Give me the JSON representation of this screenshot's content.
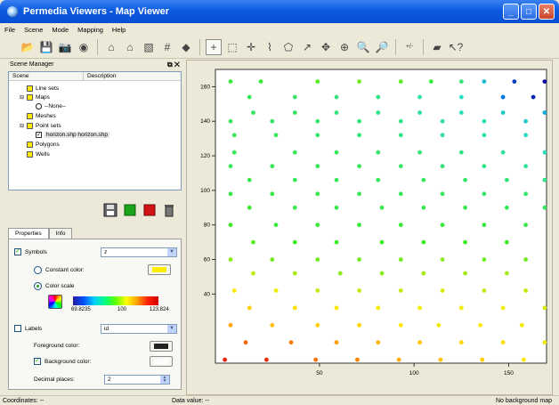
{
  "window": {
    "title": "Permedia Viewers - Map Viewer"
  },
  "menu": [
    "File",
    "Scene",
    "Mode",
    "Mapping",
    "Help"
  ],
  "toolbar": {
    "zoom_pm": "+/-"
  },
  "scene_manager": {
    "title": "Scene Manager",
    "columns": [
      "Scene",
      "Description"
    ],
    "items": [
      {
        "label": "Line sets"
      },
      {
        "label": "Maps"
      },
      {
        "label": "--None--"
      },
      {
        "label": "Meshes"
      },
      {
        "label": "Point sets"
      },
      {
        "label": "horizon.shp",
        "description": "horizon.shp"
      },
      {
        "label": "Polygons"
      },
      {
        "label": "Wells"
      }
    ]
  },
  "tabs": [
    "Properties",
    "Info"
  ],
  "properties": {
    "symbols_label": "Symbols",
    "symbols_field": "z",
    "constant_color_label": "Constant color:",
    "color_scale_label": "Color scale",
    "scale_min": "69.8235",
    "scale_mid": "100",
    "scale_max": "123.824",
    "labels_label": "Labels",
    "labels_field": "id",
    "foreground_label": "Foreground color:",
    "background_label": "Background color:",
    "decimal_label": "Decimal places:",
    "decimal_value": "2",
    "colors": {
      "constant": "#ffee00",
      "foreground": "#222222",
      "background": "#ffffff"
    }
  },
  "status": {
    "coordinates": "Coordinates: --",
    "data_value": "Data value: --",
    "background": "No background map"
  },
  "chart_data": {
    "type": "scatter",
    "title": "",
    "xlabel": "",
    "ylabel": "",
    "xlim": [
      -5,
      170
    ],
    "ylim": [
      0,
      170
    ],
    "xticks": [
      50,
      100,
      150
    ],
    "yticks": [
      40,
      60,
      80,
      100,
      120,
      140,
      160
    ],
    "color_scale": {
      "min": 69.8235,
      "max": 123.824
    },
    "point_rows": [
      {
        "y": 2,
        "x": [
          0,
          22,
          48,
          70,
          92,
          114,
          136,
          158
        ],
        "c": [
          0.02,
          0.05,
          0.18,
          0.22,
          0.3,
          0.36,
          0.38,
          0.44
        ]
      },
      {
        "y": 12,
        "x": [
          11,
          35,
          59,
          81,
          103,
          125,
          147,
          169
        ],
        "c": [
          0.16,
          0.2,
          0.26,
          0.32,
          0.36,
          0.4,
          0.42,
          0.46
        ]
      },
      {
        "y": 22,
        "x": [
          3,
          25,
          49,
          71,
          93,
          113,
          135,
          157
        ],
        "c": [
          0.28,
          0.34,
          0.38,
          0.4,
          0.44,
          0.46,
          0.44,
          0.46
        ]
      },
      {
        "y": 32,
        "x": [
          13,
          37,
          59,
          81,
          103,
          125,
          147,
          169
        ],
        "c": [
          0.38,
          0.42,
          0.44,
          0.46,
          0.46,
          0.46,
          0.46,
          0.48
        ]
      },
      {
        "y": 42,
        "x": [
          5,
          27,
          49,
          71,
          93,
          115,
          137,
          159
        ],
        "c": [
          0.44,
          0.46,
          0.5,
          0.5,
          0.5,
          0.48,
          0.5,
          0.5
        ]
      },
      {
        "y": 52,
        "x": [
          15,
          37,
          61,
          83,
          105,
          127,
          149
        ],
        "c": [
          0.5,
          0.52,
          0.54,
          0.54,
          0.52,
          0.52,
          0.52
        ]
      },
      {
        "y": 60,
        "x": [
          3,
          25,
          49,
          71,
          93,
          115,
          137,
          159
        ],
        "c": [
          0.54,
          0.56,
          0.56,
          0.56,
          0.56,
          0.54,
          0.56,
          0.56
        ]
      },
      {
        "y": 70,
        "x": [
          15,
          37,
          59,
          83,
          105,
          127,
          149
        ],
        "c": [
          0.58,
          0.6,
          0.6,
          0.6,
          0.6,
          0.6,
          0.6
        ]
      },
      {
        "y": 80,
        "x": [
          3,
          27,
          49,
          71,
          93,
          115,
          137,
          159
        ],
        "c": [
          0.6,
          0.62,
          0.62,
          0.62,
          0.62,
          0.62,
          0.64,
          0.64
        ]
      },
      {
        "y": 90,
        "x": [
          13,
          37,
          59,
          83,
          105,
          127,
          149,
          169
        ],
        "c": [
          0.62,
          0.64,
          0.64,
          0.64,
          0.64,
          0.64,
          0.66,
          0.66
        ]
      },
      {
        "y": 98,
        "x": [
          3,
          25,
          49,
          71,
          93,
          115,
          137,
          159
        ],
        "c": [
          0.64,
          0.64,
          0.64,
          0.66,
          0.66,
          0.66,
          0.68,
          0.68
        ]
      },
      {
        "y": 106,
        "x": [
          13,
          37,
          59,
          81,
          105,
          127,
          149,
          169
        ],
        "c": [
          0.64,
          0.66,
          0.66,
          0.66,
          0.66,
          0.68,
          0.7,
          0.72
        ]
      },
      {
        "y": 114,
        "x": [
          3,
          25,
          49,
          71,
          93,
          115,
          137,
          159
        ],
        "c": [
          0.66,
          0.66,
          0.66,
          0.66,
          0.68,
          0.7,
          0.72,
          0.74
        ]
      },
      {
        "y": 122,
        "x": [
          5,
          37,
          59,
          81,
          103,
          125,
          147,
          169
        ],
        "c": [
          0.66,
          0.66,
          0.66,
          0.68,
          0.7,
          0.72,
          0.74,
          0.78
        ]
      },
      {
        "y": 132,
        "x": [
          5,
          27,
          49,
          71,
          93,
          115,
          137,
          159
        ],
        "c": [
          0.66,
          0.66,
          0.68,
          0.7,
          0.72,
          0.74,
          0.76,
          0.8
        ]
      },
      {
        "y": 140,
        "x": [
          3,
          25,
          49,
          71,
          93,
          115,
          137,
          159
        ],
        "c": [
          0.66,
          0.68,
          0.68,
          0.7,
          0.72,
          0.76,
          0.78,
          0.82
        ]
      },
      {
        "y": 145,
        "x": [
          15,
          37,
          59,
          81,
          103,
          125,
          147,
          169
        ],
        "c": [
          0.68,
          0.68,
          0.7,
          0.72,
          0.74,
          0.78,
          0.82,
          0.86
        ]
      },
      {
        "y": 154,
        "x": [
          13,
          37,
          59,
          81,
          103,
          125,
          147,
          163
        ],
        "c": [
          0.66,
          0.68,
          0.7,
          0.72,
          0.76,
          0.8,
          0.92,
          0.98
        ]
      },
      {
        "y": 163,
        "x": [
          3,
          19,
          49,
          71,
          93,
          109,
          125,
          137,
          153,
          169
        ],
        "c": [
          0.62,
          0.62,
          0.58,
          0.56,
          0.58,
          0.62,
          0.7,
          0.84,
          0.96,
          1.0
        ]
      }
    ]
  }
}
